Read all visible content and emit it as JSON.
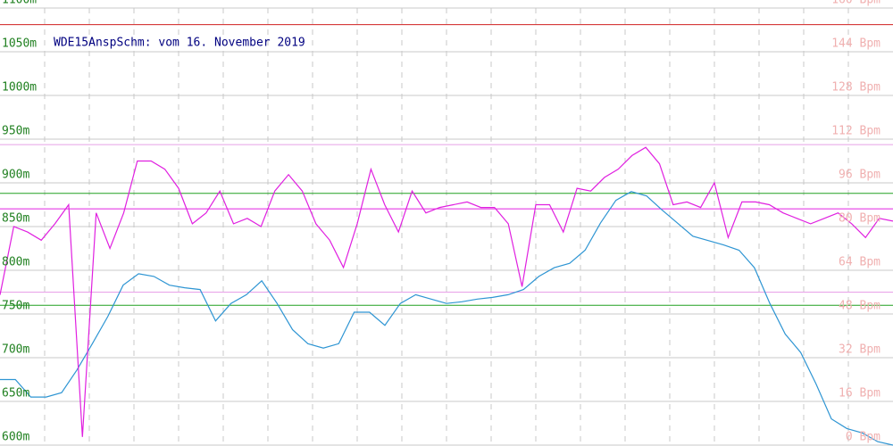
{
  "chart_data": {
    "type": "line",
    "title": "WDE15AnspSchm: vom 16. November 2019",
    "ylim": [
      600,
      1100
    ],
    "yticks": [
      {
        "value": 600,
        "label": "600m"
      },
      {
        "value": 650,
        "label": "650m"
      },
      {
        "value": 700,
        "label": "700m"
      },
      {
        "value": 750,
        "label": "750m"
      },
      {
        "value": 800,
        "label": "800m"
      },
      {
        "value": 850,
        "label": "850m"
      },
      {
        "value": 900,
        "label": "900m"
      },
      {
        "value": 950,
        "label": "950m"
      },
      {
        "value": 1000,
        "label": "1000m"
      },
      {
        "value": 1050,
        "label": "1050m"
      },
      {
        "value": 1100,
        "label": "1100m"
      }
    ],
    "y2lim": [
      0,
      160
    ],
    "y2ticks": [
      {
        "value": 0,
        "label": "0 Bpm"
      },
      {
        "value": 16,
        "label": "16 Bpm"
      },
      {
        "value": 32,
        "label": "32 Bpm"
      },
      {
        "value": 48,
        "label": "48 Bpm"
      },
      {
        "value": 64,
        "label": "64 Bpm"
      },
      {
        "value": 80,
        "label": "80 Bpm"
      },
      {
        "value": 96,
        "label": "96 Bpm"
      },
      {
        "value": 112,
        "label": "112 Bpm"
      },
      {
        "value": 128,
        "label": "128 Bpm"
      },
      {
        "value": 144,
        "label": "144 Bpm"
      },
      {
        "value": 160,
        "label": "160 Bpm"
      }
    ],
    "grid": true,
    "reference_lines": [
      {
        "value": 1081,
        "color": "#d02020"
      },
      {
        "value": 888,
        "color": "#20a020"
      },
      {
        "value": 760,
        "color": "#20a020"
      },
      {
        "value": 110,
        "color": "#e8a0e8",
        "axis": "y2"
      },
      {
        "value": 86.5,
        "color": "#e020e0",
        "axis": "y2"
      },
      {
        "value": 56,
        "color": "#e8a0e8",
        "axis": "y2"
      }
    ],
    "series": [
      {
        "color": "#2e95d3",
        "values": [
          675,
          675,
          655,
          655,
          660,
          686,
          716,
          747,
          783,
          796,
          793,
          783,
          780,
          778,
          742,
          762,
          772,
          788,
          762,
          732,
          716,
          711,
          716,
          752,
          752,
          737,
          762,
          772,
          767,
          762,
          764,
          767,
          769,
          772,
          778,
          793,
          803,
          808,
          823,
          854,
          880,
          890,
          885,
          869,
          854,
          839,
          834,
          829,
          823,
          803,
          762,
          727,
          706,
          670,
          630,
          619,
          614,
          604,
          600
        ]
      },
      {
        "color": "#e020e0",
        "axis": "y2",
        "values": [
          55,
          80,
          78,
          75,
          81,
          88,
          3,
          85,
          72,
          85,
          104,
          104,
          101,
          94,
          81,
          85,
          93,
          81,
          83,
          80,
          93,
          99,
          93,
          81,
          75,
          65,
          81,
          101,
          88,
          78,
          93,
          85,
          87,
          88,
          89,
          87,
          87,
          81,
          58,
          88,
          88,
          78,
          94,
          93,
          98,
          101,
          106,
          109,
          103,
          88,
          89,
          87,
          96,
          76,
          89,
          89,
          88,
          85,
          83,
          81,
          83,
          85,
          81,
          76,
          83,
          82
        ]
      }
    ]
  }
}
